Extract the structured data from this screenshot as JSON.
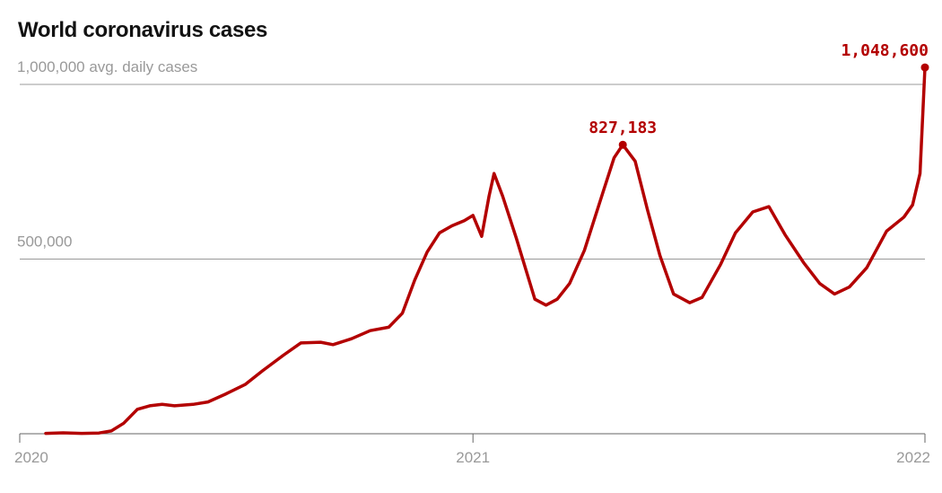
{
  "title": "World coronavirus cases",
  "colors": {
    "line": "#b30000",
    "grid": "#999999",
    "text_muted": "#999999",
    "axis": "#666666"
  },
  "chart_data": {
    "type": "line",
    "title": "World coronavirus cases",
    "xlabel": "",
    "ylabel": "1,000,000 avg. daily cases",
    "ylim": [
      0,
      1000000
    ],
    "xlim": [
      "2020-01-01",
      "2022-01-01"
    ],
    "y_gridlines": [
      {
        "value": 1000000,
        "label": "1,000,000 avg. daily cases"
      },
      {
        "value": 500000,
        "label": "500,000"
      }
    ],
    "x_ticks": [
      {
        "date": "2020-01-01",
        "label": "2020"
      },
      {
        "date": "2021-01-01",
        "label": "2021"
      },
      {
        "date": "2022-01-01",
        "label": "2022"
      }
    ],
    "annotations": [
      {
        "date": "2021-05-02",
        "value": 827183,
        "label": "827,183"
      },
      {
        "date": "2022-01-01",
        "value": 1048600,
        "label": "1,048,600"
      }
    ],
    "series": [
      {
        "values": [
          [
            "2020-01-22",
            1000
          ],
          [
            "2020-02-05",
            2500
          ],
          [
            "2020-02-20",
            1000
          ],
          [
            "2020-03-05",
            2000
          ],
          [
            "2020-03-15",
            8000
          ],
          [
            "2020-03-25",
            30000
          ],
          [
            "2020-04-05",
            70000
          ],
          [
            "2020-04-15",
            80000
          ],
          [
            "2020-04-25",
            84000
          ],
          [
            "2020-05-05",
            80000
          ],
          [
            "2020-05-20",
            84000
          ],
          [
            "2020-06-01",
            91000
          ],
          [
            "2020-06-15",
            113000
          ],
          [
            "2020-07-01",
            141000
          ],
          [
            "2020-07-15",
            180000
          ],
          [
            "2020-08-01",
            225000
          ],
          [
            "2020-08-15",
            260000
          ],
          [
            "2020-08-31",
            262000
          ],
          [
            "2020-09-10",
            255000
          ],
          [
            "2020-09-25",
            272000
          ],
          [
            "2020-10-10",
            295000
          ],
          [
            "2020-10-25",
            305000
          ],
          [
            "2020-11-05",
            345000
          ],
          [
            "2020-11-15",
            440000
          ],
          [
            "2020-11-25",
            520000
          ],
          [
            "2020-12-05",
            575000
          ],
          [
            "2020-12-15",
            595000
          ],
          [
            "2020-12-25",
            610000
          ],
          [
            "2021-01-01",
            625000
          ],
          [
            "2021-01-08",
            565000
          ],
          [
            "2021-01-14",
            680000
          ],
          [
            "2021-01-18",
            745000
          ],
          [
            "2021-01-25",
            680000
          ],
          [
            "2021-02-05",
            560000
          ],
          [
            "2021-02-20",
            385000
          ],
          [
            "2021-03-01",
            368000
          ],
          [
            "2021-03-10",
            385000
          ],
          [
            "2021-03-20",
            430000
          ],
          [
            "2021-04-01",
            525000
          ],
          [
            "2021-04-15",
            680000
          ],
          [
            "2021-04-25",
            790000
          ],
          [
            "2021-05-02",
            827183
          ],
          [
            "2021-05-12",
            780000
          ],
          [
            "2021-05-22",
            640000
          ],
          [
            "2021-06-01",
            510000
          ],
          [
            "2021-06-12",
            400000
          ],
          [
            "2021-06-25",
            375000
          ],
          [
            "2021-07-05",
            390000
          ],
          [
            "2021-07-20",
            485000
          ],
          [
            "2021-08-01",
            575000
          ],
          [
            "2021-08-15",
            635000
          ],
          [
            "2021-08-28",
            650000
          ],
          [
            "2021-09-10",
            570000
          ],
          [
            "2021-09-25",
            490000
          ],
          [
            "2021-10-08",
            430000
          ],
          [
            "2021-10-20",
            400000
          ],
          [
            "2021-11-01",
            420000
          ],
          [
            "2021-11-15",
            475000
          ],
          [
            "2021-12-01",
            580000
          ],
          [
            "2021-12-15",
            620000
          ],
          [
            "2021-12-22",
            655000
          ],
          [
            "2021-12-28",
            745000
          ],
          [
            "2022-01-01",
            1048600
          ]
        ]
      }
    ]
  }
}
